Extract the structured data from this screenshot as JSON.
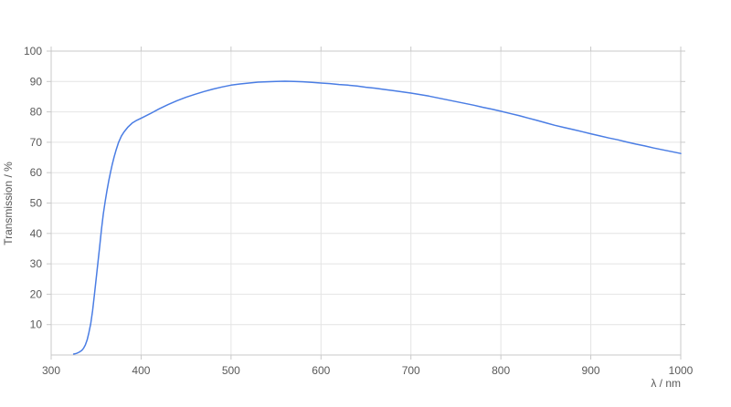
{
  "chart": {
    "background_color": "#ffffff",
    "line_color": "#4a7de4",
    "grid_color": "#e4e4e4",
    "frame_color": "#c9c9c9",
    "tick_color": "#c9c9c9",
    "text_color": "#595959",
    "xticks": [
      300,
      400,
      500,
      600,
      700,
      800,
      900,
      1000
    ],
    "yticks": [
      10,
      20,
      30,
      40,
      50,
      60,
      70,
      80,
      90,
      100
    ]
  },
  "chart_data": {
    "type": "line",
    "title": "",
    "xlabel": "λ / nm",
    "ylabel": "Transmission / %",
    "xlim": [
      300,
      1000
    ],
    "ylim": [
      0,
      100
    ],
    "grid": true,
    "legend": false,
    "series": [
      {
        "name": "transmission",
        "x": [
          325,
          328,
          331,
          334,
          336,
          338,
          340,
          342,
          344,
          346,
          348,
          350,
          352,
          354,
          356,
          358,
          360,
          362,
          364,
          366,
          368,
          370,
          372,
          375,
          378,
          381,
          385,
          390,
          395,
          400,
          410,
          420,
          430,
          440,
          450,
          460,
          470,
          480,
          490,
          500,
          510,
          520,
          530,
          540,
          550,
          560,
          570,
          580,
          590,
          600,
          610,
          620,
          630,
          640,
          650,
          660,
          670,
          680,
          690,
          700,
          710,
          720,
          730,
          740,
          750,
          760,
          770,
          780,
          790,
          800,
          810,
          820,
          830,
          840,
          850,
          860,
          870,
          880,
          890,
          900,
          910,
          920,
          930,
          940,
          950,
          960,
          970,
          980,
          990,
          1000
        ],
        "y": [
          0.3,
          0.5,
          0.9,
          1.5,
          2.2,
          3.3,
          5.0,
          7.4,
          10.3,
          14.5,
          19.5,
          25.0,
          30.5,
          36.0,
          41.5,
          46.5,
          50.5,
          54.0,
          57.3,
          60.2,
          62.8,
          65.2,
          67.3,
          70.0,
          72.0,
          73.4,
          74.9,
          76.3,
          77.2,
          77.9,
          79.4,
          81.0,
          82.4,
          83.7,
          84.8,
          85.8,
          86.7,
          87.5,
          88.2,
          88.8,
          89.2,
          89.5,
          89.8,
          89.9,
          90.0,
          90.1,
          90.0,
          89.9,
          89.7,
          89.5,
          89.3,
          89.0,
          88.8,
          88.5,
          88.1,
          87.8,
          87.4,
          87.0,
          86.6,
          86.2,
          85.7,
          85.2,
          84.6,
          84.0,
          83.4,
          82.8,
          82.2,
          81.5,
          80.9,
          80.2,
          79.5,
          78.8,
          78.0,
          77.2,
          76.4,
          75.6,
          74.9,
          74.2,
          73.5,
          72.8,
          72.1,
          71.4,
          70.8,
          70.1,
          69.4,
          68.8,
          68.1,
          67.5,
          66.9,
          66.3
        ]
      }
    ]
  }
}
